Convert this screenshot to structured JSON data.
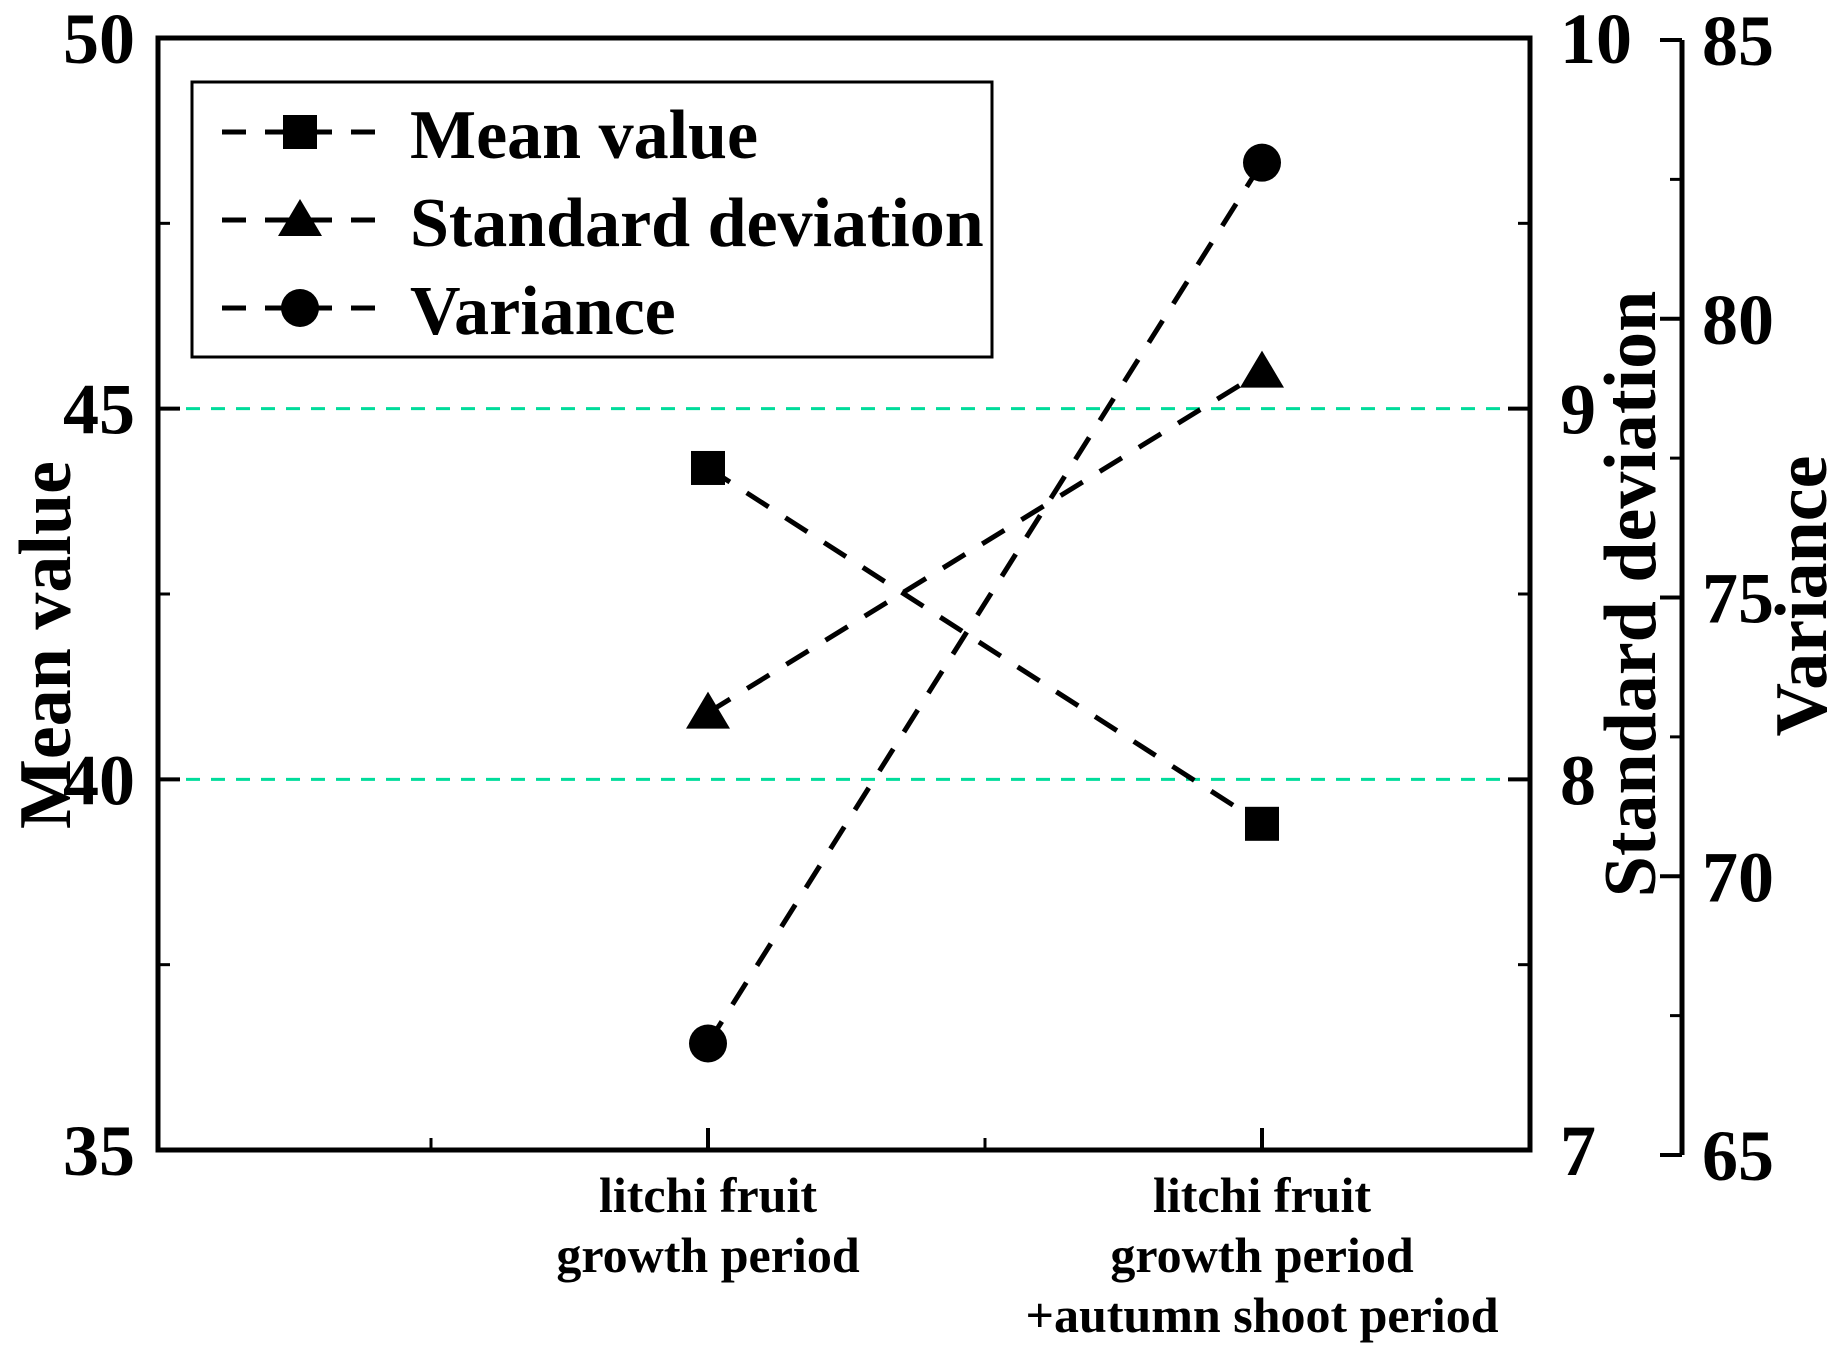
{
  "chart_data": {
    "type": "line",
    "style": "dashed-with-markers",
    "categories": [
      {
        "lines": [
          "litchi fruit",
          "growth period"
        ]
      },
      {
        "lines": [
          "litchi fruit",
          "growth period",
          "+autumn shoot period"
        ]
      }
    ],
    "series": [
      {
        "name": "Mean value",
        "marker": "square",
        "axis": "mean",
        "values": [
          44.2,
          39.4
        ]
      },
      {
        "name": "Standard deviation",
        "marker": "triangle",
        "axis": "sd",
        "values": [
          8.18,
          9.1
        ]
      },
      {
        "name": "Variance",
        "marker": "circle",
        "axis": "variance",
        "values": [
          67.0,
          82.8
        ]
      }
    ],
    "axes": {
      "mean": {
        "label": "Mean value",
        "min": 35,
        "max": 50,
        "major_ticks": [
          35,
          40,
          45,
          50
        ],
        "minor_ticks": [
          37.5,
          42.5,
          47.5
        ],
        "side": "left"
      },
      "sd": {
        "label": "Standard deviation",
        "min": 7,
        "max": 10,
        "major_ticks": [
          7,
          8,
          9,
          10
        ],
        "minor_ticks": [
          7.5,
          8.5,
          9.5
        ],
        "side": "right"
      },
      "variance": {
        "label": "Variance",
        "min": 65,
        "max": 85,
        "major_ticks": [
          65,
          70,
          75,
          80,
          85
        ],
        "minor_ticks": [
          67.5,
          72.5,
          77.5,
          82.5
        ],
        "side": "far-right"
      }
    },
    "gridlines": {
      "axis": "mean",
      "values": [
        40,
        45
      ],
      "color": "#00DC9B"
    },
    "legend": {
      "position": "top-left",
      "items": [
        "Mean value",
        "Standard deviation",
        "Variance"
      ]
    },
    "line_color": "#000000",
    "background_color": "#ffffff"
  }
}
